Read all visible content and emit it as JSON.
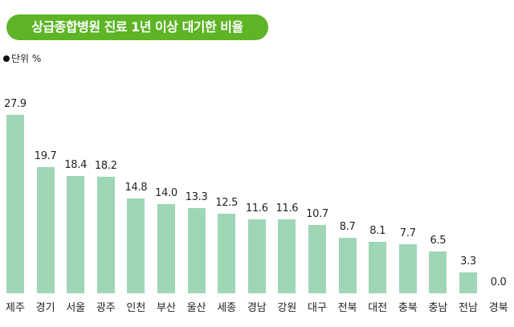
{
  "title": "상급종합병원 진료 1년 이상 대기한 비율",
  "unit": "단위 %",
  "colors": {
    "title_bg": "#5db425",
    "bar": "#9fd6b5"
  },
  "chart_data": {
    "type": "bar",
    "title": "상급종합병원 진료 1년 이상 대기한 비율",
    "unit": "%",
    "xlabel": "",
    "ylabel": "",
    "ylim": [
      0,
      27.9
    ],
    "grid": false,
    "legend": null,
    "categories": [
      "제주",
      "경기",
      "서울",
      "광주",
      "인천",
      "부산",
      "울산",
      "세종",
      "경남",
      "강원",
      "대구",
      "전북",
      "대전",
      "충북",
      "충남",
      "전남",
      "경북"
    ],
    "values": [
      27.9,
      19.7,
      18.4,
      18.2,
      14.8,
      14.0,
      13.3,
      12.5,
      11.6,
      11.6,
      10.7,
      8.7,
      8.1,
      7.7,
      6.5,
      3.3,
      0.0
    ],
    "labels": [
      "27.9",
      "19.7",
      "18.4",
      "18.2",
      "14.8",
      "14.0",
      "13.3",
      "12.5",
      "11.6",
      "11.6",
      "10.7",
      "8.7",
      "8.1",
      "7.7",
      "6.5",
      "3.3",
      "0.0"
    ]
  }
}
